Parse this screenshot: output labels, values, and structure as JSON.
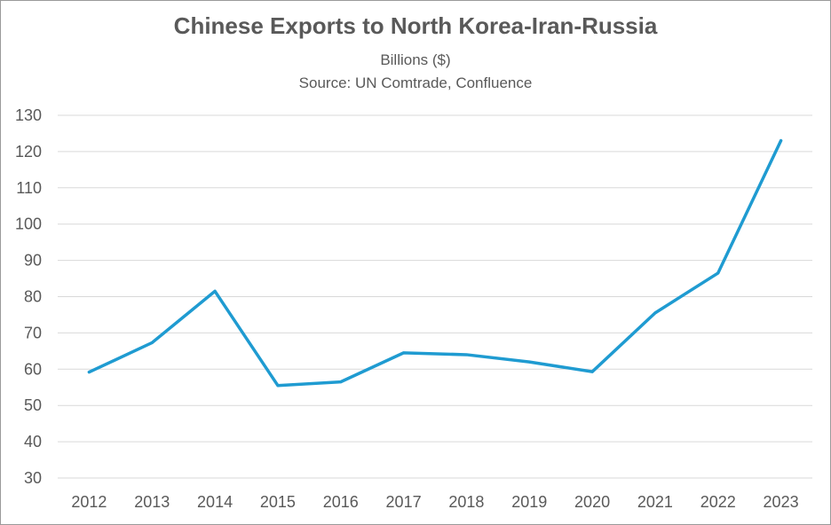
{
  "chart_data": {
    "type": "line",
    "title": "Chinese Exports to North Korea-Iran-Russia",
    "subtitle": [
      "Billions ($)",
      "Source: UN Comtrade, Confluence"
    ],
    "categories": [
      "2012",
      "2013",
      "2014",
      "2015",
      "2016",
      "2017",
      "2018",
      "2019",
      "2020",
      "2021",
      "2022",
      "2023"
    ],
    "series": [
      {
        "values": [
          59.2,
          67.3,
          81.5,
          55.5,
          56.5,
          64.5,
          64.0,
          62.0,
          59.3,
          75.5,
          86.5,
          123.0
        ]
      }
    ],
    "ylim": [
      30,
      130
    ],
    "yticks": [
      "130",
      "120",
      "110",
      "100",
      "90",
      "80",
      "70",
      "60",
      "50",
      "40",
      "30"
    ],
    "grid": true,
    "legend": "none",
    "line_color": "#1f9bd1",
    "grid_color": "#d9d9d9"
  }
}
